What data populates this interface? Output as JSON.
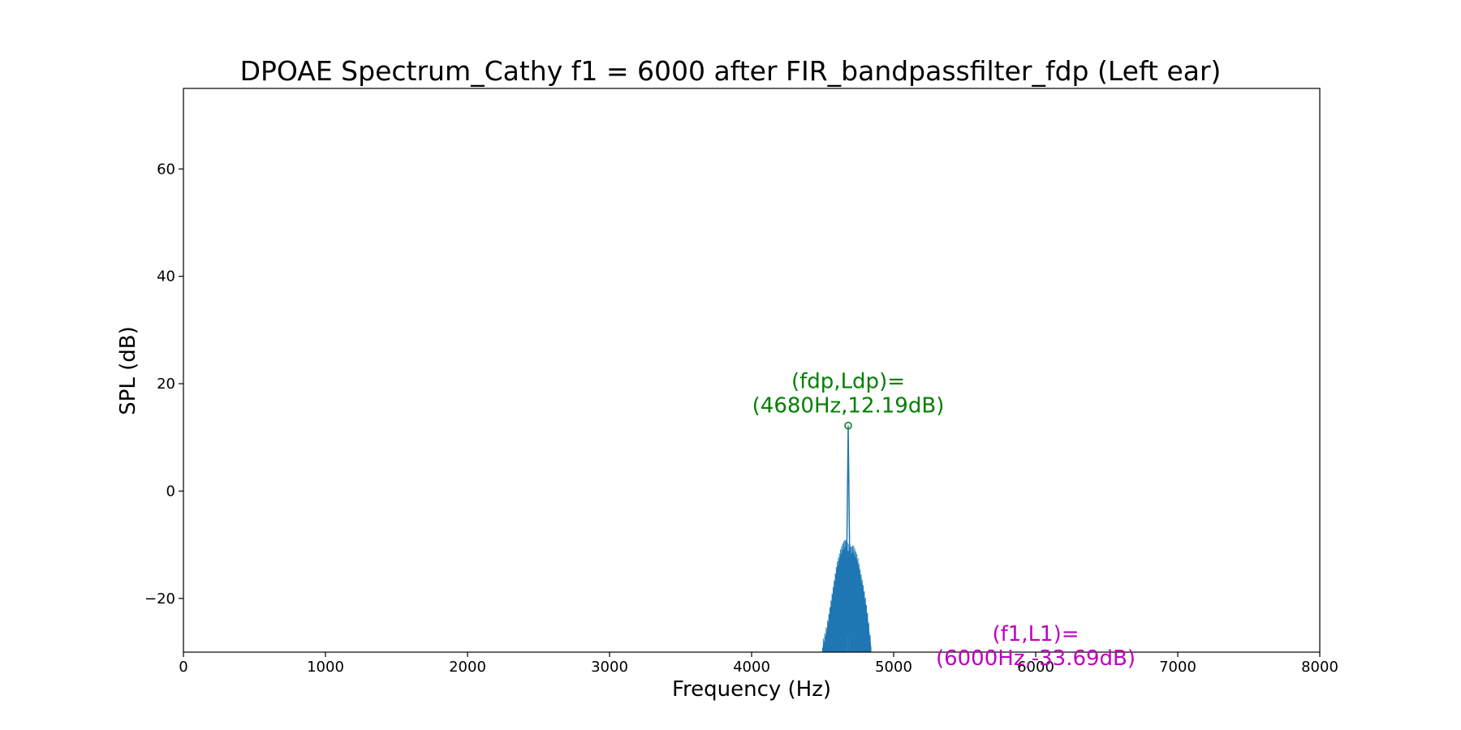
{
  "chart_data": {
    "type": "line",
    "title": "DPOAE Spectrum_Cathy f1 = 6000 after FIR_bandpassfilter_fdp (Left ear)",
    "xlabel": "Frequency (Hz)",
    "ylabel": "SPL (dB)",
    "xlim": [
      0,
      8000
    ],
    "ylim": [
      -30,
      75
    ],
    "xticks": [
      0,
      1000,
      2000,
      3000,
      4000,
      5000,
      6000,
      7000,
      8000
    ],
    "xtick_labels": [
      "0",
      "1000",
      "2000",
      "3000",
      "4000",
      "5000",
      "6000",
      "7000",
      "8000"
    ],
    "yticks": [
      -20,
      0,
      20,
      40,
      60
    ],
    "ytick_labels": [
      "−20",
      "0",
      "20",
      "40",
      "60"
    ],
    "grid": false,
    "series": [
      {
        "color": "#1f77b4",
        "points": [
          [
            4500,
            -29.5
          ],
          [
            4520,
            -27.5
          ],
          [
            4540,
            -25.0
          ],
          [
            4555,
            -22.5
          ],
          [
            4570,
            -20.0
          ],
          [
            4585,
            -17.5
          ],
          [
            4600,
            -15.0
          ],
          [
            4615,
            -13.5
          ],
          [
            4630,
            -12.0
          ],
          [
            4645,
            -11.0
          ],
          [
            4660,
            -10.5
          ],
          [
            4670,
            -11.0
          ],
          [
            4680,
            12.19
          ],
          [
            4690,
            -11.5
          ],
          [
            4700,
            -12.0
          ],
          [
            4715,
            -11.5
          ],
          [
            4730,
            -12.5
          ],
          [
            4745,
            -13.5
          ],
          [
            4760,
            -15.5
          ],
          [
            4775,
            -17.5
          ],
          [
            4790,
            -19.5
          ],
          [
            4805,
            -22.0
          ],
          [
            4820,
            -25.0
          ],
          [
            4840,
            -29.5
          ]
        ],
        "band_floor": [
          [
            4500,
            -30
          ],
          [
            4560,
            -30
          ],
          [
            4600,
            -28.0
          ],
          [
            4640,
            -26.0
          ],
          [
            4680,
            -27.0
          ],
          [
            4720,
            -25.5
          ],
          [
            4760,
            -28.0
          ],
          [
            4800,
            -30
          ],
          [
            4840,
            -30
          ]
        ]
      }
    ],
    "annotations": [
      {
        "lines": [
          "(fdp,Ldp)=",
          "(4680Hz,12.19dB)"
        ],
        "x": 4680,
        "y": 12.19,
        "color": "#008000"
      },
      {
        "lines": [
          "(f1,L1)=",
          "(6000Hz,-33.69dB)"
        ],
        "x": 6000,
        "y": -33.69,
        "color": "#bf00bf"
      }
    ]
  }
}
